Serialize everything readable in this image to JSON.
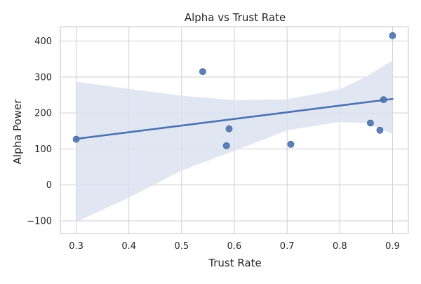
{
  "chart_data": {
    "type": "scatter",
    "title": "Alpha vs Trust Rate",
    "xlabel": "Trust Rate",
    "ylabel": "Alpha Power",
    "xlim": [
      0.27,
      0.93
    ],
    "ylim": [
      -135,
      440
    ],
    "xticks": [
      0.3,
      0.4,
      0.5,
      0.6,
      0.7,
      0.8,
      0.9
    ],
    "yticks": [
      -100,
      0,
      100,
      200,
      300,
      400
    ],
    "xtick_labels": [
      "0.3",
      "0.4",
      "0.5",
      "0.6",
      "0.7",
      "0.8",
      "0.9"
    ],
    "ytick_labels": [
      "−100",
      "0",
      "100",
      "200",
      "300",
      "400"
    ],
    "grid": true,
    "points": [
      {
        "x": 0.3,
        "y": 127
      },
      {
        "x": 0.54,
        "y": 315
      },
      {
        "x": 0.585,
        "y": 109
      },
      {
        "x": 0.59,
        "y": 156
      },
      {
        "x": 0.707,
        "y": 113
      },
      {
        "x": 0.858,
        "y": 172
      },
      {
        "x": 0.876,
        "y": 152
      },
      {
        "x": 0.883,
        "y": 237
      },
      {
        "x": 0.9,
        "y": 415
      }
    ],
    "regression": {
      "line": {
        "x": [
          0.3,
          0.9
        ],
        "y": [
          128,
          239
        ]
      },
      "confidence_band": {
        "x": [
          0.3,
          0.4,
          0.5,
          0.6,
          0.7,
          0.8,
          0.85,
          0.9
        ],
        "upper": [
          287,
          267,
          248,
          236,
          238,
          266,
          301,
          346
        ],
        "lower": [
          -103,
          -35,
          40,
          95,
          152,
          175,
          172,
          141
        ]
      }
    },
    "colors": {
      "point": "#4c72b0",
      "line": "#4c72b0",
      "band": "#dbe2f0",
      "grid": "#cfcfd4",
      "axes_edge": "#cfcfd4",
      "text": "#262626"
    }
  }
}
